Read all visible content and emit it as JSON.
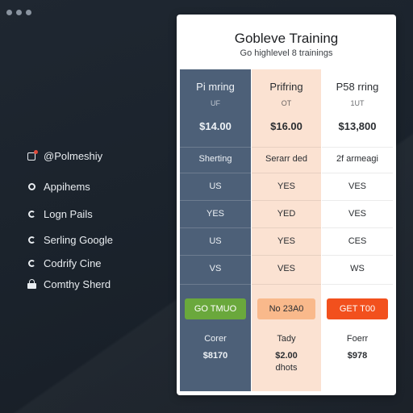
{
  "window": {
    "controls": [
      "dot",
      "dot",
      "dot"
    ]
  },
  "sidebar": {
    "items": [
      {
        "label": "@Polmeshiy",
        "icon": "tag-icon"
      },
      {
        "label": "Appihems",
        "icon": "ring-icon"
      },
      {
        "label": "Logn Pails",
        "icon": "ring-icon"
      },
      {
        "label": "Serling Google",
        "icon": "ring-icon"
      },
      {
        "label": "Codrify Cine",
        "icon": "ring-icon"
      },
      {
        "label": "Comthy Sherd",
        "icon": "lock-icon"
      }
    ]
  },
  "card": {
    "title": "Gobleve Training",
    "subtitle": "Go highlevel 8 trainings"
  },
  "plans": [
    {
      "name": "Pi mring",
      "unit": "UF",
      "price": "$14.00",
      "rows": [
        "Sherting",
        "US",
        "YES",
        "US",
        "VS"
      ],
      "button": "GO TMUO",
      "foot_label": "Corer",
      "foot_price": "$8170",
      "foot_extra": ""
    },
    {
      "name": "Prifring",
      "unit": "OT",
      "price": "$16.00",
      "rows": [
        "Serarr ded",
        "YES",
        "YED",
        "YES",
        "VES"
      ],
      "button": "No 23A0",
      "foot_label": "Tady",
      "foot_price": "$2.00",
      "foot_extra": "dhots"
    },
    {
      "name": "P58 rring",
      "unit": "1UT",
      "price": "$13,800",
      "rows": [
        "2f armeagi",
        "VES",
        "VES",
        "CES",
        "WS"
      ],
      "button": "GET T00",
      "foot_label": "Foerr",
      "foot_price": "$978",
      "foot_extra": ""
    }
  ]
}
